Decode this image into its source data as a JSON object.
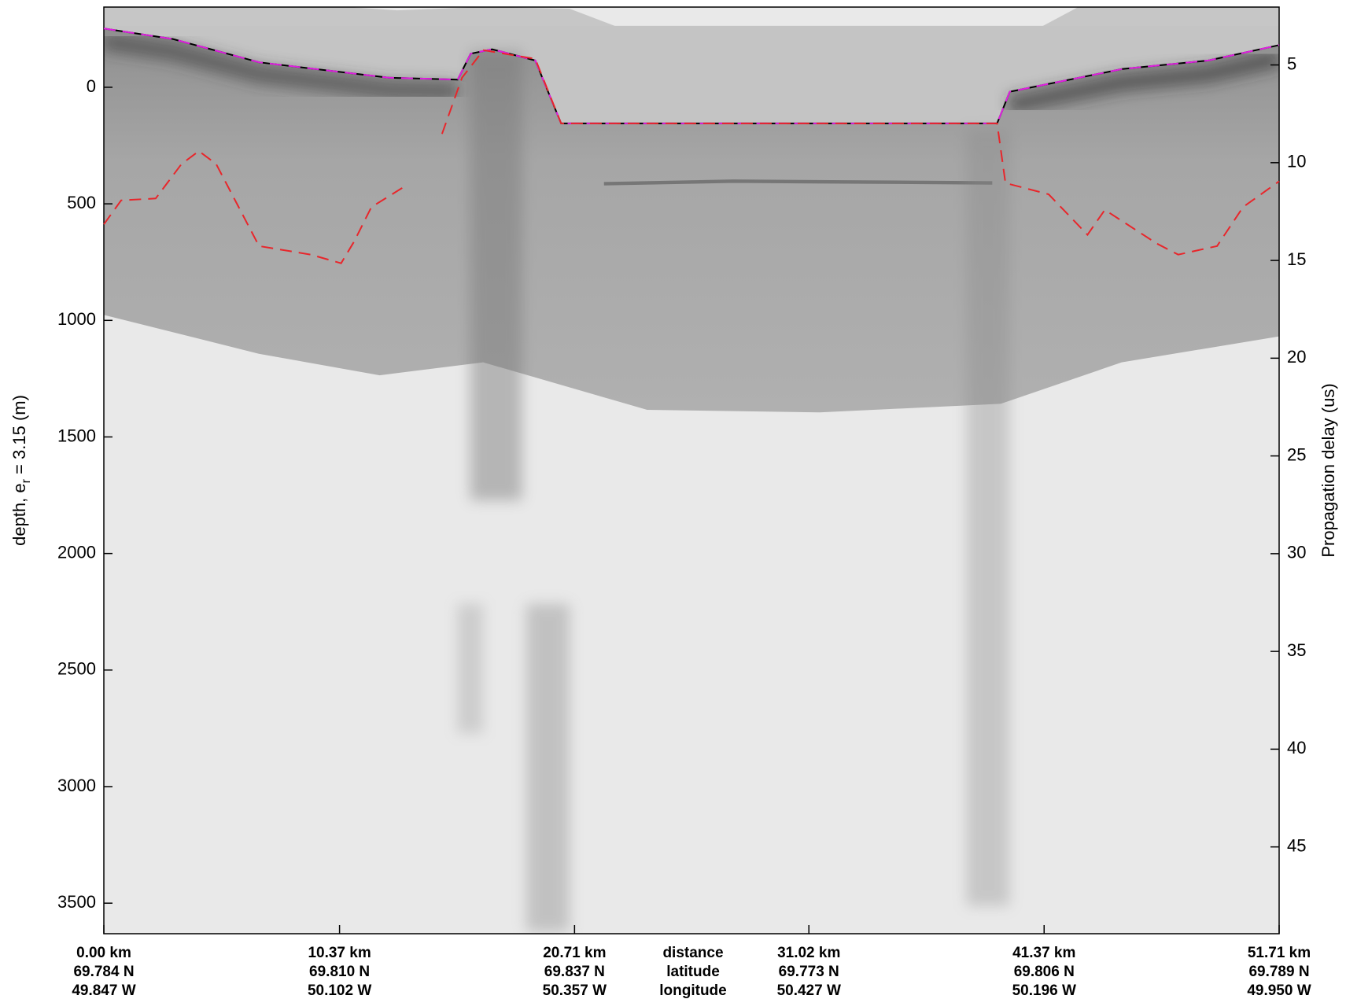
{
  "chart_data": {
    "type": "line",
    "y_label": {
      "main": "depth, e",
      "subscript": "r",
      "rest": " = 3.15 (m)"
    },
    "y2_label": "Propagation delay (us)",
    "ylim": [
      -344,
      3631
    ],
    "yticks": [
      0,
      500,
      1000,
      1500,
      2000,
      2500,
      3000,
      3500
    ],
    "y2lim": [
      2.04,
      49.44
    ],
    "y2ticks": [
      5,
      10,
      15,
      20,
      25,
      30,
      35,
      40,
      45
    ],
    "xlim": [
      0,
      51.71
    ],
    "xticks": [
      {
        "value": 0,
        "label": "0.00 km"
      },
      {
        "value": 10.37,
        "label": "10.37 km"
      },
      {
        "value": 20.71,
        "label": "20.71 km"
      },
      {
        "value": 31.02,
        "label": "31.02 km"
      },
      {
        "value": 41.37,
        "label": "41.37 km"
      },
      {
        "value": 51.71,
        "label": "51.71 km"
      }
    ],
    "latitude_labels": [
      "69.784 N",
      "69.810 N",
      "69.837 N",
      "69.773 N",
      "69.806 N",
      "69.789 N"
    ],
    "longitude_labels": [
      "49.847 W",
      "50.102 W",
      "50.357 W",
      "50.427 W",
      "50.196 W",
      "49.950 W"
    ],
    "row_labels": [
      "distance",
      "latitude",
      "longitude"
    ],
    "y_reversed": true,
    "series": [
      {
        "color": "#e020e0",
        "dash": true,
        "underlay": "#000000",
        "x": [
          0,
          3.04,
          6.83,
          12.53,
          15.57,
          16.14,
          17.08,
          18.98,
          20.12,
          39.3,
          39.86,
          44.8,
          48.6,
          51.71
        ],
        "values": [
          -252,
          -207,
          -107,
          -41,
          -33,
          -144,
          -163,
          -115,
          155,
          155,
          19,
          -78,
          -115,
          -181
        ]
      },
      {
        "color": "#e8262b",
        "dash": true,
        "x": [
          0,
          0.76,
          2.28,
          3.42,
          4.18,
          4.94,
          6.83,
          9.11,
          10.44,
          11.01,
          11.77,
          13.29,
          null,
          14.88,
          15.76,
          16.7,
          18.98,
          20.12,
          39.3,
          39.67,
          41.57,
          43.28,
          44.04,
          46.32,
          47.27,
          48.98,
          50.12,
          51.71
        ],
        "values": [
          588,
          485,
          477,
          329,
          274,
          329,
          681,
          718,
          755,
          662,
          514,
          422,
          null,
          200,
          -41,
          -159,
          -122,
          155,
          155,
          411,
          459,
          633,
          526,
          670,
          718,
          681,
          514,
          403
        ]
      }
    ]
  }
}
